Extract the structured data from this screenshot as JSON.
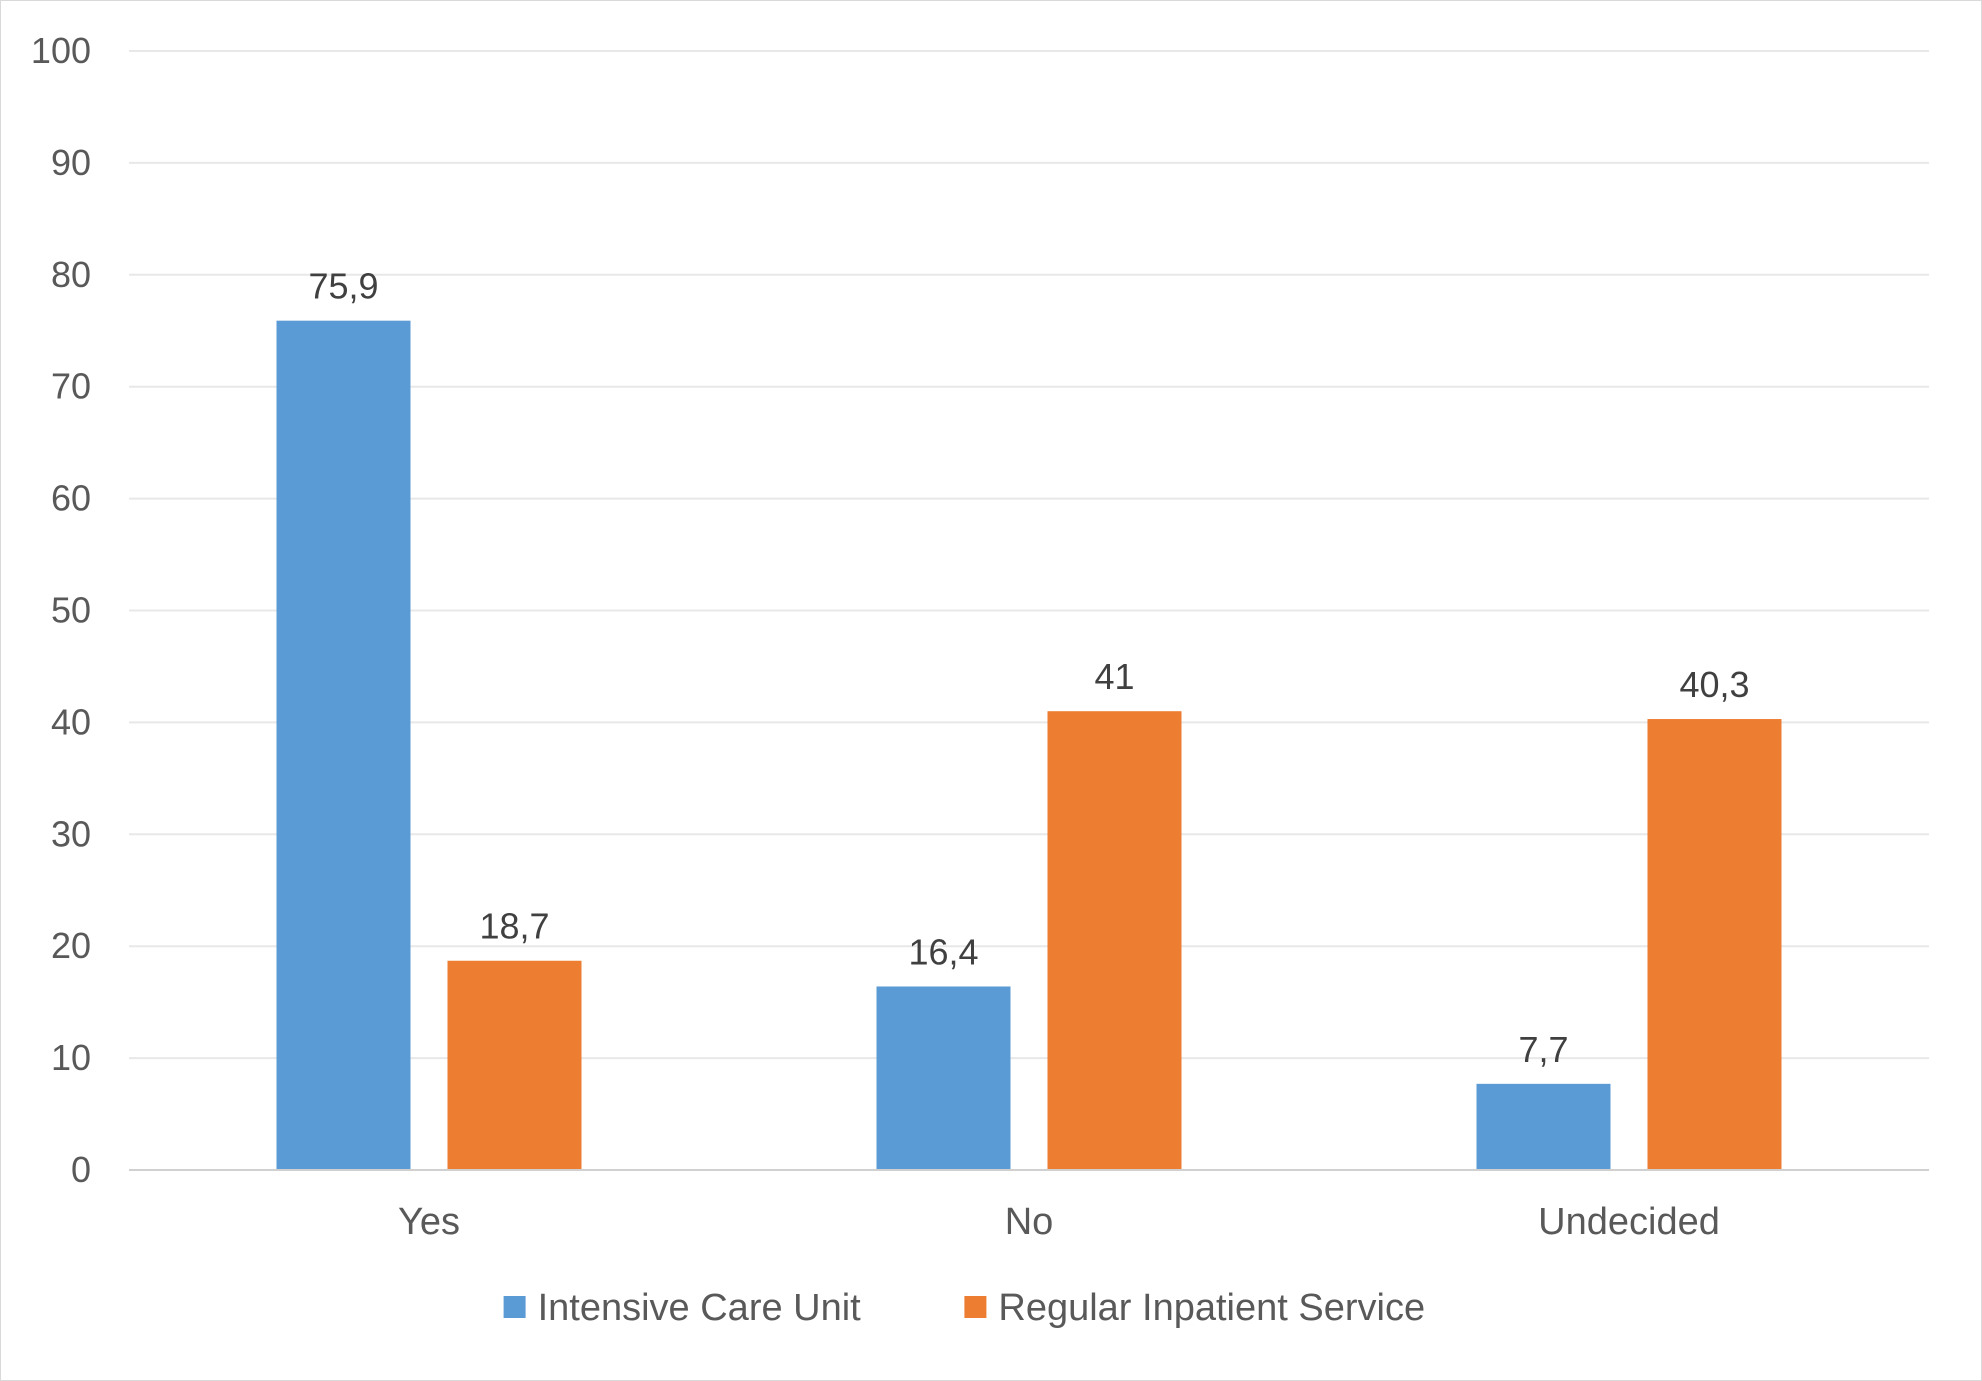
{
  "chart_data": {
    "type": "bar",
    "title": "",
    "xlabel": "",
    "ylabel": "",
    "categories": [
      "Yes",
      "No",
      "Undecided"
    ],
    "series": [
      {
        "name": "Intensive Care Unit",
        "values": [
          75.9,
          16.4,
          7.7
        ],
        "labels": [
          "75,9",
          "16,4",
          "7,7"
        ],
        "color": "#5b9bd5"
      },
      {
        "name": "Regular Inpatient Service",
        "values": [
          18.7,
          41,
          40.3
        ],
        "labels": [
          "18,7",
          "41",
          "40,3"
        ],
        "color": "#ed7d31"
      }
    ],
    "ylim": [
      0,
      100
    ],
    "yticks": [
      0,
      10,
      20,
      30,
      40,
      50,
      60,
      70,
      80,
      90,
      100
    ],
    "grid": true,
    "gridline_color": "#e8e8e8",
    "axis_color": "#d0d0d0",
    "legend_position": "bottom"
  }
}
